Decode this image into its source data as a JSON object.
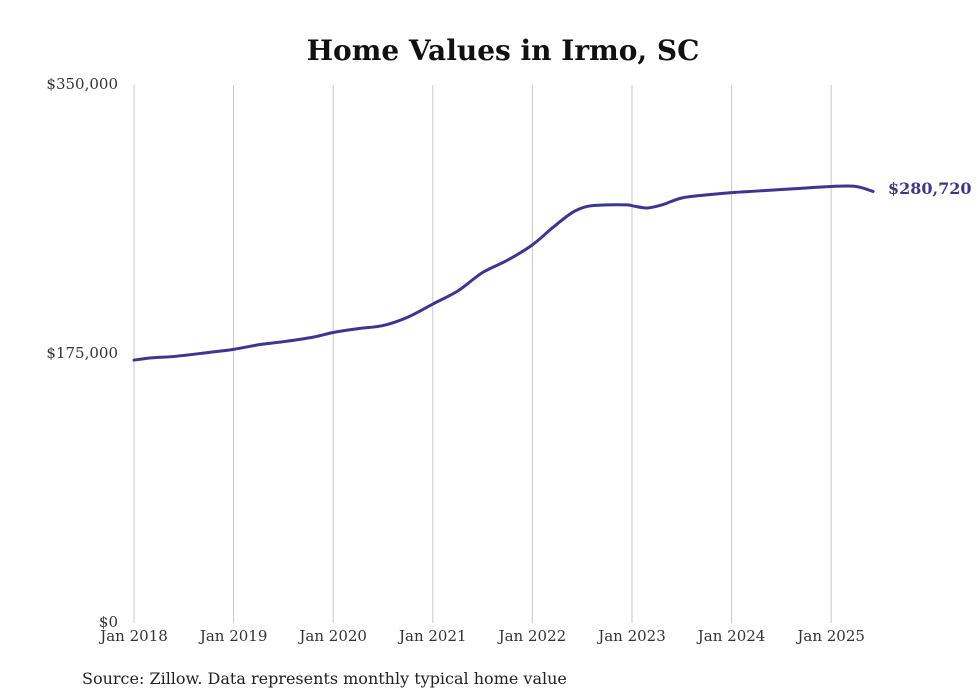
{
  "chart_data": {
    "type": "line",
    "title": "Home Values in Irmo, SC",
    "xlabel": "",
    "ylabel": "",
    "ylim": [
      0,
      350000
    ],
    "y_ticks": [
      0,
      175000,
      350000
    ],
    "y_tick_labels": [
      "$0",
      "$175,000",
      "$350,000"
    ],
    "x_range": [
      2018.0,
      2025.42
    ],
    "x_ticks": [
      2018,
      2019,
      2020,
      2021,
      2022,
      2023,
      2024,
      2025
    ],
    "x_tick_labels": [
      "Jan 2018",
      "Jan 2019",
      "Jan 2020",
      "Jan 2021",
      "Jan 2022",
      "Jan 2023",
      "Jan 2024",
      "Jan 2025"
    ],
    "grid": "vertical",
    "series": [
      {
        "name": "Typical home value",
        "color": "#3d3592",
        "x": [
          2018.0,
          2018.17,
          2018.42,
          2018.75,
          2019.0,
          2019.25,
          2019.5,
          2019.8,
          2020.0,
          2020.25,
          2020.5,
          2020.75,
          2021.0,
          2021.25,
          2021.5,
          2021.75,
          2022.0,
          2022.2,
          2022.4,
          2022.55,
          2022.75,
          2022.95,
          2023.0,
          2023.15,
          2023.3,
          2023.5,
          2023.75,
          2024.0,
          2024.25,
          2024.5,
          2024.75,
          2025.0,
          2025.25,
          2025.42
        ],
        "values": [
          171000,
          172500,
          173500,
          176000,
          178000,
          181000,
          183000,
          186000,
          189000,
          191500,
          193500,
          199000,
          207500,
          216000,
          228000,
          236000,
          246000,
          257000,
          267000,
          271000,
          272000,
          272000,
          271500,
          270000,
          272000,
          276500,
          278500,
          280000,
          281000,
          282000,
          283000,
          284000,
          284000,
          280720
        ]
      }
    ],
    "end_label": "$280,720",
    "source_note": "Source: Zillow. Data represents monthly typical home value"
  }
}
